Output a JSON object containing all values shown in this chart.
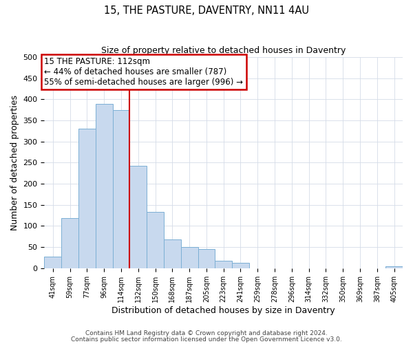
{
  "title1": "15, THE PASTURE, DAVENTRY, NN11 4AU",
  "title2": "Size of property relative to detached houses in Daventry",
  "xlabel": "Distribution of detached houses by size in Daventry",
  "ylabel": "Number of detached properties",
  "categories": [
    "41sqm",
    "59sqm",
    "77sqm",
    "96sqm",
    "114sqm",
    "132sqm",
    "150sqm",
    "168sqm",
    "187sqm",
    "205sqm",
    "223sqm",
    "241sqm",
    "259sqm",
    "278sqm",
    "296sqm",
    "314sqm",
    "332sqm",
    "350sqm",
    "369sqm",
    "387sqm",
    "405sqm"
  ],
  "values": [
    28,
    118,
    330,
    390,
    375,
    242,
    133,
    68,
    50,
    45,
    18,
    13,
    0,
    0,
    0,
    0,
    0,
    0,
    0,
    0,
    5
  ],
  "bar_color": "#c8d9ee",
  "bar_edge_color": "#7bafd4",
  "vline_index": 4,
  "vline_color": "#cc0000",
  "annotation_title": "15 THE PASTURE: 112sqm",
  "annotation_line1": "← 44% of detached houses are smaller (787)",
  "annotation_line2": "55% of semi-detached houses are larger (996) →",
  "annotation_box_color": "#cc0000",
  "ylim": [
    0,
    500
  ],
  "yticks": [
    0,
    50,
    100,
    150,
    200,
    250,
    300,
    350,
    400,
    450,
    500
  ],
  "footer1": "Contains HM Land Registry data © Crown copyright and database right 2024.",
  "footer2": "Contains public sector information licensed under the Open Government Licence v3.0.",
  "bg_color": "#ffffff",
  "grid_color": "#d4dce8"
}
